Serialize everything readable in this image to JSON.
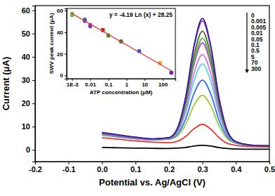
{
  "chart_data": [
    {
      "type": "line",
      "xlabel": "Potential vs. Ag/AgCl (V)",
      "ylabel": "Current (μA)",
      "xlim": [
        -0.2,
        0.5
      ],
      "ylim": [
        -5,
        62
      ],
      "xticks": [
        -0.2,
        -0.1,
        {
          "value": 0,
          "label": "0.0"
        },
        0.1,
        0.2,
        0.3,
        0.4,
        0.5
      ],
      "yticks": [
        0,
        10,
        20,
        30,
        40,
        50,
        60
      ],
      "grid": false,
      "legend": "upper right",
      "x": [
        0,
        0.025,
        0.05,
        0.1,
        0.15,
        0.2,
        0.225,
        0.25,
        0.275,
        0.3,
        0.325,
        0.35,
        0.375,
        0.4,
        0.45,
        0.5
      ],
      "series": [
        {
          "name": "0",
          "color": "#3b1f9c",
          "values": [
            7.5,
            7,
            6.5,
            5.5,
            4.8,
            5.3,
            9.3,
            22.9,
            44.9,
            56.5,
            44.6,
            22.1,
            8.0,
            3.6,
            2,
            1.8
          ]
        },
        {
          "name": "0.001",
          "color": "#8e44e0",
          "values": [
            7.3,
            6.8,
            6.3,
            5.4,
            4.7,
            5.2,
            9.2,
            22.5,
            44.2,
            55.5,
            43.9,
            21.7,
            7.9,
            3.5,
            2,
            1.8
          ]
        },
        {
          "name": "0.005",
          "color": "#4f6b28",
          "values": [
            7.2,
            6.7,
            6.2,
            5.3,
            4.7,
            5.2,
            8.8,
            20.9,
            40.7,
            51,
            40.4,
            20.1,
            7.5,
            3.5,
            2,
            1.7
          ]
        },
        {
          "name": "0.01",
          "color": "#4cbb4c",
          "values": [
            7.0,
            6.6,
            6.1,
            5.2,
            4.6,
            5.1,
            8.5,
            19.8,
            38.3,
            48,
            38.0,
            19.0,
            7.2,
            3.4,
            2,
            1.7
          ]
        },
        {
          "name": "0.05",
          "color": "#cc44dd",
          "values": [
            6.9,
            6.5,
            6.0,
            5.1,
            4.6,
            5.1,
            8.3,
            19.1,
            36.8,
            46,
            36.5,
            18.3,
            7.0,
            3.4,
            1.9,
            1.7
          ]
        },
        {
          "name": "0.1",
          "color": "#c77fe0",
          "values": [
            6.8,
            6.4,
            5.9,
            5.0,
            4.5,
            4.9,
            7.8,
            17.3,
            32.9,
            41,
            32.6,
            16.5,
            6.5,
            3.3,
            1.9,
            1.6
          ]
        },
        {
          "name": "0.5",
          "color": "#5ad6e6",
          "values": [
            6.7,
            6.3,
            5.8,
            5.0,
            4.5,
            4.9,
            7.4,
            15.9,
            29.7,
            37,
            29.4,
            15.1,
            6.1,
            3.2,
            1.9,
            1.6
          ]
        },
        {
          "name": "5",
          "color": "#3a6ff0",
          "values": [
            6.5,
            6.1,
            5.6,
            4.9,
            4.4,
            4.7,
            6.7,
            13.3,
            24.3,
            30,
            24.0,
            12.5,
            5.4,
            3.0,
            1.8,
            1.6
          ]
        },
        {
          "name": "70",
          "color": "#9ccc3c",
          "values": [
            6.3,
            5.9,
            5.5,
            4.8,
            4.3,
            4.6,
            6.0,
            11.0,
            19.2,
            23.5,
            18.9,
            10.2,
            4.7,
            2.9,
            1.8,
            1.5
          ]
        },
        {
          "name": "300",
          "color": "#e53935",
          "values": [
            5.3,
            4.9,
            4.6,
            3.9,
            3.4,
            3.1,
            3.7,
            5.8,
            9.1,
            11,
            8.9,
            5.2,
            2.8,
            2.0,
            1.4,
            1.3
          ]
        },
        {
          "color": "#000000",
          "values": [
            1.1,
            1.0,
            0.9,
            0.8,
            0.7,
            0.6,
            0.8,
            1.1,
            1.7,
            2.0,
            1.7,
            1.0,
            0.6,
            0.4,
            0.3,
            0.3
          ]
        }
      ]
    },
    {
      "type": "scatter",
      "xlabel": "ATP concentration (μM)",
      "ylabel": "SWV peak current (μA)",
      "annotation": "y = -4.19 Ln (x) + 28.25",
      "log": "x",
      "xlim": [
        0.0005,
        500
      ],
      "ylim": [
        -3,
        62
      ],
      "xticks": [
        {
          "value": 0.001,
          "label": "1E-3"
        },
        0.01,
        0.1,
        1,
        10,
        100
      ],
      "yticks": [
        0,
        20,
        40,
        60
      ],
      "series": [
        {
          "type": "scatter",
          "marker": "circle",
          "x": [
            0.001,
            0.005,
            0.01,
            0.05,
            0.1,
            0.5,
            5,
            70,
            300
          ],
          "values": [
            56.5,
            51,
            46,
            42,
            37,
            31.5,
            22.5,
            11.5,
            2.5
          ],
          "errors": [
            2,
            2,
            2,
            1.5,
            1.5,
            1.2,
            1,
            1,
            1
          ],
          "colors": [
            "#6ab04c",
            "#3949ab",
            "#8e24aa",
            "#c62828",
            "#558b2f",
            "#4e6b3a",
            "#1e5ad6",
            "#f39c32",
            "#7b1fa2"
          ]
        },
        {
          "type": "line",
          "color": "#e53935",
          "x": [
            0.001,
            300
          ],
          "values": [
            57.2,
            4.35
          ]
        }
      ]
    }
  ]
}
